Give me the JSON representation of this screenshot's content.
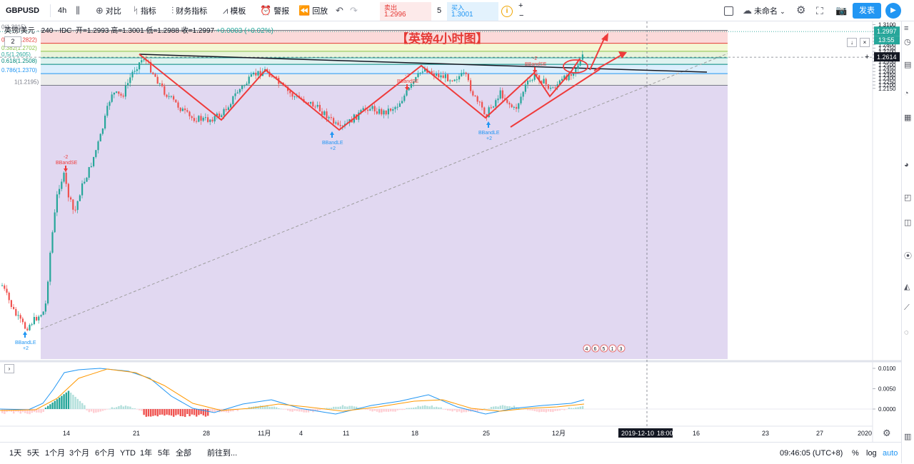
{
  "toolbar": {
    "symbol": "GBPUSD",
    "interval": "4h",
    "compare": "对比",
    "indicators": "指标",
    "financials": "财务指标",
    "templates": "模板",
    "alert": "警报",
    "replay": "回放",
    "sell_label": "卖出",
    "sell_value": "1.2996",
    "spread": "5",
    "buy_label": "买入",
    "buy_value": "1.3001",
    "layout_name": "未命名",
    "publish": "发表"
  },
  "legend": {
    "name": "英镑/美元 · 240 · IDC",
    "open": "开=1.2993",
    "high": "高=1.3001",
    "low": "低=1.2988",
    "close": "收=1.2997",
    "change": "+0.0003 (+0.02%)"
  },
  "annotation_title": "【英镑4小时图】",
  "control_box": "2",
  "fib_labels": [
    {
      "text": "0(1.3015)",
      "color": "#787b86"
    },
    {
      "text": "0.236(1.2822)",
      "color": "#e53935"
    },
    {
      "text": "0.382(1.2702)",
      "color": "#8bc34a"
    },
    {
      "text": "0.5(1.2605)",
      "color": "#26a69a"
    },
    {
      "text": "0.618(1.2508)",
      "color": "#00897b"
    },
    {
      "text": "0.786(1.2370)",
      "color": "#2196f3"
    },
    {
      "text": "1(1.2195)",
      "color": "#787b86"
    }
  ],
  "price_axis": [
    "1.3100",
    "1.3050",
    "1.3000",
    "1.2950",
    "1.2900",
    "1.2850",
    "1.2800",
    "1.2750",
    "1.2700",
    "1.2650",
    "1.2600",
    "1.2550",
    "1.2500",
    "1.2450",
    "1.2400",
    "1.2350",
    "1.2300",
    "1.2250",
    "1.2200",
    "1.2150"
  ],
  "price_current": "1.2997",
  "price_countdown": "13:55",
  "crosshair_price": "1.2614",
  "macd_axis": [
    "0.0100",
    "0.0050",
    "0.0000"
  ],
  "date_axis": [
    "14",
    "21",
    "28",
    "11月",
    "4",
    "11",
    "18",
    "25",
    "12月",
    "16",
    "23",
    "27",
    "2020"
  ],
  "crosshair_date": "2019-12-10",
  "crosshair_time": "18:00",
  "signals": {
    "bbandle": "BBandLE",
    "bbandse": "BBandSE",
    "plus2": "+2",
    "minus2": "-2"
  },
  "event_badges": [
    "4",
    "6",
    "5",
    "1",
    "3"
  ],
  "bottom": {
    "ranges": [
      "1天",
      "5天",
      "1个月",
      "3个月",
      "6个月",
      "YTD",
      "1年",
      "5年",
      "全部"
    ],
    "goto": "前往到...",
    "clock": "09:46:05 (UTC+8)",
    "percent": "%",
    "log": "log",
    "auto": "auto"
  },
  "colors": {
    "up": "#26a69a",
    "down": "#ef5350",
    "accent": "#2196f3",
    "annotation": "#e53935"
  }
}
